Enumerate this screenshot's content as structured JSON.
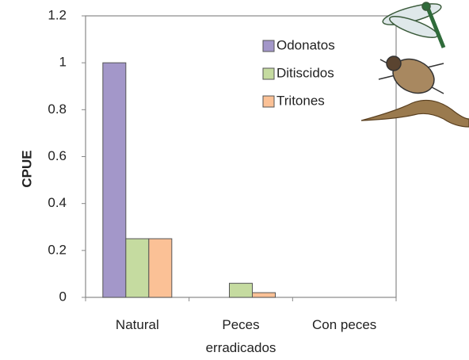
{
  "chart_data": {
    "type": "bar",
    "y_label": "CPUE",
    "categories": [
      "Natural",
      "Peces erradicados",
      "Con peces"
    ],
    "series": [
      {
        "name": "Odonatos",
        "color": "#a397c9",
        "values": [
          1,
          0,
          0
        ]
      },
      {
        "name": "Ditiscidos",
        "color": "#c5dba0",
        "values": [
          0.25,
          0.06,
          0
        ]
      },
      {
        "name": "Tritones",
        "color": "#fbc196",
        "values": [
          0.25,
          0.02,
          0
        ]
      }
    ],
    "ylim": [
      0,
      1.2
    ],
    "yticks": [
      0,
      0.2,
      0.4,
      0.6,
      0.8,
      1,
      1.2
    ],
    "legend": "upper-right"
  }
}
